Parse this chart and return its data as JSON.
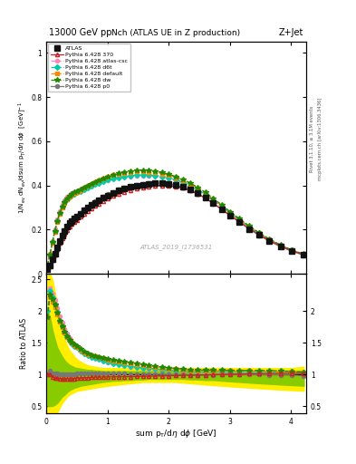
{
  "title_top": "13000 GeV pp",
  "title_right": "Z+Jet",
  "plot_title": "Nch (ATLAS UE in Z production)",
  "xlabel": "sum p_{T}/d\\eta d\\phi [GeV]",
  "watermark": "ATLAS_2019_I1736531",
  "right_label": "Rivet 3.1.10, ≥ 3.1M events",
  "right_label2": "mcplots.cern.ch [arXiv:1306.3436]",
  "xlim": [
    0,
    4.25
  ],
  "ylim_main": [
    0,
    1.05
  ],
  "ylim_ratio": [
    0.39,
    2.59
  ],
  "band_inner_color": "#88cc00",
  "band_outer_color": "#ffee00",
  "x_data": [
    0.02,
    0.06,
    0.1,
    0.14,
    0.18,
    0.22,
    0.26,
    0.3,
    0.34,
    0.38,
    0.42,
    0.46,
    0.5,
    0.56,
    0.62,
    0.68,
    0.74,
    0.8,
    0.86,
    0.93,
    1.01,
    1.1,
    1.19,
    1.28,
    1.38,
    1.48,
    1.58,
    1.68,
    1.78,
    1.89,
    2.0,
    2.11,
    2.23,
    2.35,
    2.47,
    2.6,
    2.73,
    2.87,
    3.01,
    3.16,
    3.32,
    3.48,
    3.65,
    3.83,
    4.01,
    4.21
  ],
  "ATLAS_y": [
    0.02,
    0.038,
    0.065,
    0.092,
    0.12,
    0.148,
    0.172,
    0.194,
    0.212,
    0.228,
    0.24,
    0.25,
    0.258,
    0.272,
    0.287,
    0.3,
    0.312,
    0.322,
    0.332,
    0.343,
    0.355,
    0.366,
    0.376,
    0.385,
    0.393,
    0.399,
    0.404,
    0.408,
    0.41,
    0.41,
    0.408,
    0.403,
    0.394,
    0.382,
    0.366,
    0.346,
    0.32,
    0.292,
    0.263,
    0.234,
    0.203,
    0.175,
    0.148,
    0.124,
    0.103,
    0.086
  ],
  "y_370": [
    0.02,
    0.038,
    0.062,
    0.087,
    0.113,
    0.138,
    0.16,
    0.18,
    0.198,
    0.212,
    0.224,
    0.234,
    0.243,
    0.257,
    0.272,
    0.285,
    0.297,
    0.308,
    0.318,
    0.329,
    0.341,
    0.352,
    0.362,
    0.371,
    0.379,
    0.386,
    0.392,
    0.396,
    0.399,
    0.4,
    0.399,
    0.395,
    0.388,
    0.377,
    0.362,
    0.343,
    0.319,
    0.292,
    0.264,
    0.235,
    0.205,
    0.177,
    0.15,
    0.126,
    0.105,
    0.087
  ],
  "y_atlas_csc": [
    0.04,
    0.09,
    0.148,
    0.2,
    0.245,
    0.283,
    0.312,
    0.333,
    0.348,
    0.358,
    0.365,
    0.37,
    0.374,
    0.38,
    0.387,
    0.394,
    0.4,
    0.406,
    0.411,
    0.417,
    0.423,
    0.429,
    0.434,
    0.438,
    0.441,
    0.443,
    0.444,
    0.444,
    0.442,
    0.438,
    0.432,
    0.424,
    0.412,
    0.397,
    0.379,
    0.357,
    0.331,
    0.302,
    0.272,
    0.242,
    0.21,
    0.181,
    0.153,
    0.128,
    0.106,
    0.087
  ],
  "y_d6t": [
    0.04,
    0.088,
    0.144,
    0.194,
    0.238,
    0.274,
    0.302,
    0.323,
    0.338,
    0.349,
    0.357,
    0.363,
    0.368,
    0.375,
    0.383,
    0.391,
    0.398,
    0.405,
    0.411,
    0.418,
    0.425,
    0.432,
    0.437,
    0.441,
    0.444,
    0.446,
    0.447,
    0.447,
    0.445,
    0.441,
    0.435,
    0.427,
    0.415,
    0.4,
    0.382,
    0.36,
    0.334,
    0.305,
    0.275,
    0.244,
    0.212,
    0.183,
    0.154,
    0.129,
    0.107,
    0.088
  ],
  "y_default": [
    0.038,
    0.085,
    0.14,
    0.19,
    0.234,
    0.271,
    0.3,
    0.322,
    0.338,
    0.35,
    0.359,
    0.366,
    0.371,
    0.379,
    0.388,
    0.397,
    0.406,
    0.414,
    0.421,
    0.43,
    0.438,
    0.446,
    0.452,
    0.457,
    0.46,
    0.462,
    0.462,
    0.461,
    0.458,
    0.453,
    0.446,
    0.436,
    0.423,
    0.407,
    0.387,
    0.364,
    0.337,
    0.308,
    0.277,
    0.246,
    0.214,
    0.184,
    0.155,
    0.129,
    0.107,
    0.088
  ],
  "y_dw": [
    0.038,
    0.086,
    0.142,
    0.193,
    0.237,
    0.274,
    0.303,
    0.325,
    0.341,
    0.352,
    0.361,
    0.368,
    0.373,
    0.381,
    0.39,
    0.399,
    0.407,
    0.415,
    0.422,
    0.431,
    0.44,
    0.448,
    0.455,
    0.46,
    0.464,
    0.466,
    0.467,
    0.466,
    0.463,
    0.458,
    0.451,
    0.441,
    0.428,
    0.412,
    0.392,
    0.369,
    0.342,
    0.312,
    0.28,
    0.249,
    0.216,
    0.186,
    0.157,
    0.131,
    0.108,
    0.089
  ],
  "y_p0": [
    0.02,
    0.04,
    0.066,
    0.094,
    0.122,
    0.149,
    0.173,
    0.194,
    0.213,
    0.228,
    0.241,
    0.252,
    0.261,
    0.275,
    0.29,
    0.304,
    0.316,
    0.327,
    0.337,
    0.348,
    0.36,
    0.371,
    0.381,
    0.389,
    0.396,
    0.402,
    0.407,
    0.41,
    0.411,
    0.41,
    0.407,
    0.401,
    0.392,
    0.379,
    0.363,
    0.343,
    0.318,
    0.291,
    0.262,
    0.233,
    0.202,
    0.174,
    0.147,
    0.123,
    0.102,
    0.084
  ],
  "band_outer_lo": [
    0.4,
    0.4,
    0.4,
    0.4,
    0.4,
    0.48,
    0.55,
    0.6,
    0.65,
    0.68,
    0.7,
    0.72,
    0.74,
    0.75,
    0.76,
    0.77,
    0.78,
    0.79,
    0.8,
    0.81,
    0.82,
    0.83,
    0.84,
    0.85,
    0.86,
    0.87,
    0.88,
    0.88,
    0.88,
    0.88,
    0.88,
    0.88,
    0.87,
    0.86,
    0.85,
    0.84,
    0.83,
    0.82,
    0.81,
    0.8,
    0.79,
    0.78,
    0.77,
    0.76,
    0.75,
    0.74
  ],
  "band_outer_hi": [
    2.59,
    2.59,
    2.5,
    2.3,
    2.1,
    1.9,
    1.7,
    1.55,
    1.45,
    1.38,
    1.33,
    1.28,
    1.24,
    1.2,
    1.17,
    1.14,
    1.13,
    1.12,
    1.11,
    1.1,
    1.1,
    1.1,
    1.1,
    1.1,
    1.1,
    1.1,
    1.1,
    1.1,
    1.1,
    1.1,
    1.1,
    1.1,
    1.1,
    1.1,
    1.1,
    1.1,
    1.1,
    1.1,
    1.1,
    1.1,
    1.1,
    1.1,
    1.1,
    1.1,
    1.1,
    1.12
  ],
  "band_inner_lo": [
    0.5,
    0.5,
    0.5,
    0.52,
    0.55,
    0.6,
    0.65,
    0.68,
    0.72,
    0.75,
    0.77,
    0.79,
    0.8,
    0.82,
    0.83,
    0.84,
    0.85,
    0.86,
    0.87,
    0.88,
    0.89,
    0.9,
    0.9,
    0.91,
    0.91,
    0.92,
    0.92,
    0.93,
    0.93,
    0.93,
    0.93,
    0.93,
    0.93,
    0.92,
    0.92,
    0.91,
    0.91,
    0.9,
    0.89,
    0.88,
    0.87,
    0.86,
    0.85,
    0.84,
    0.83,
    0.82
  ],
  "band_inner_hi": [
    2.0,
    1.9,
    1.7,
    1.55,
    1.42,
    1.35,
    1.28,
    1.22,
    1.18,
    1.15,
    1.13,
    1.11,
    1.1,
    1.09,
    1.08,
    1.07,
    1.07,
    1.06,
    1.06,
    1.05,
    1.05,
    1.05,
    1.05,
    1.05,
    1.05,
    1.05,
    1.05,
    1.05,
    1.05,
    1.05,
    1.05,
    1.05,
    1.05,
    1.05,
    1.05,
    1.05,
    1.05,
    1.05,
    1.05,
    1.05,
    1.05,
    1.05,
    1.05,
    1.05,
    1.05,
    1.06
  ]
}
